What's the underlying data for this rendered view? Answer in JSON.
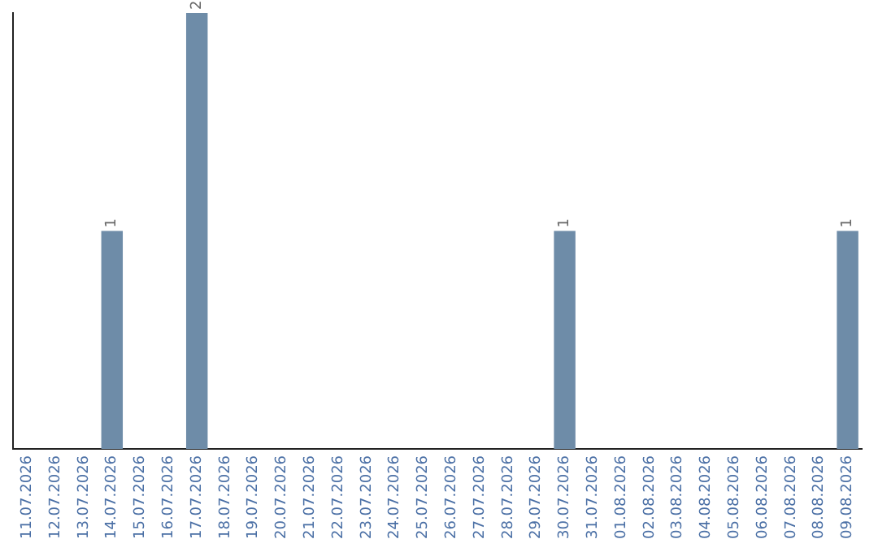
{
  "chart_data": {
    "type": "bar",
    "categories": [
      "11.07.2026",
      "12.07.2026",
      "13.07.2026",
      "14.07.2026",
      "15.07.2026",
      "16.07.2026",
      "17.07.2026",
      "18.07.2026",
      "19.07.2026",
      "20.07.2026",
      "21.07.2026",
      "22.07.2026",
      "23.07.2026",
      "24.07.2026",
      "25.07.2026",
      "26.07.2026",
      "27.07.2026",
      "28.07.2026",
      "29.07.2026",
      "30.07.2026",
      "31.07.2026",
      "01.08.2026",
      "02.08.2026",
      "03.08.2026",
      "04.08.2026",
      "05.08.2026",
      "06.08.2026",
      "07.08.2026",
      "08.08.2026",
      "09.08.2026"
    ],
    "values": [
      0,
      0,
      0,
      1,
      0,
      0,
      2,
      0,
      0,
      0,
      0,
      0,
      0,
      0,
      0,
      0,
      0,
      0,
      0,
      1,
      0,
      0,
      0,
      0,
      0,
      0,
      0,
      0,
      0,
      1
    ],
    "value_labels": [
      null,
      null,
      null,
      "1",
      null,
      null,
      "2",
      null,
      null,
      null,
      null,
      null,
      null,
      null,
      null,
      null,
      null,
      null,
      null,
      "1",
      null,
      null,
      null,
      null,
      null,
      null,
      null,
      null,
      null,
      "1"
    ],
    "color": "#6e8ca8",
    "grid": false,
    "legend": false,
    "tick_labels": "x"
  }
}
